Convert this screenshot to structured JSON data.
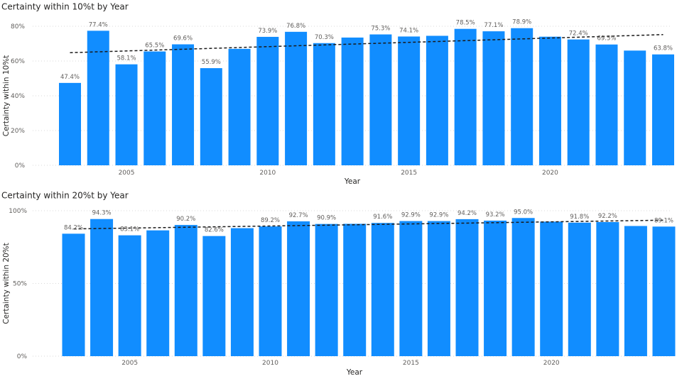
{
  "chart_data": [
    {
      "type": "bar",
      "title": "Certainty within 10%t by Year",
      "xlabel": "Year",
      "ylabel": "Certainty within 10%t",
      "ylim": [
        0,
        85
      ],
      "yticks": [
        0,
        20,
        40,
        60,
        80
      ],
      "ytick_labels": [
        "0%",
        "20%",
        "40%",
        "60%",
        "80%"
      ],
      "xticks": [
        2005,
        2010,
        2015,
        2020
      ],
      "xtick_labels": [
        "2005",
        "2010",
        "2015",
        "2020"
      ],
      "grid": true,
      "bar_color": "#118dff",
      "trendline": true,
      "categories": [
        2003,
        2004,
        2005,
        2006,
        2007,
        2008,
        2009,
        2010,
        2011,
        2012,
        2013,
        2014,
        2015,
        2016,
        2017,
        2018,
        2019,
        2020,
        2021,
        2022,
        2023,
        2024
      ],
      "values": [
        47.4,
        77.4,
        58.1,
        65.5,
        69.6,
        55.9,
        67.0,
        73.9,
        76.8,
        70.3,
        73.5,
        75.3,
        74.1,
        74.5,
        78.5,
        77.1,
        78.9,
        74.0,
        72.4,
        69.5,
        66.0,
        63.8
      ],
      "data_labels": [
        "47.4%",
        "77.4%",
        "58.1%",
        "65.5%",
        "69.6%",
        "55.9%",
        "",
        "73.9%",
        "76.8%",
        "70.3%",
        "",
        "75.3%",
        "74.1%",
        "",
        "78.5%",
        "77.1%",
        "78.9%",
        "",
        "72.4%",
        "69.5%",
        "",
        "63.8%"
      ],
      "trend_start": 64.8,
      "trend_end": 75.2
    },
    {
      "type": "bar",
      "title": "Certainty within 20%t by Year",
      "xlabel": "Year",
      "ylabel": "Certainty within 20%t",
      "ylim": [
        0,
        100
      ],
      "yticks": [
        0,
        50,
        100
      ],
      "ytick_labels": [
        "0%",
        "50%",
        "100%"
      ],
      "xticks": [
        2005,
        2010,
        2015,
        2020
      ],
      "xtick_labels": [
        "2005",
        "2010",
        "2015",
        "2020"
      ],
      "grid": true,
      "bar_color": "#118dff",
      "trendline": true,
      "categories": [
        2003,
        2004,
        2005,
        2006,
        2007,
        2008,
        2009,
        2010,
        2011,
        2012,
        2013,
        2014,
        2015,
        2016,
        2017,
        2018,
        2019,
        2020,
        2021,
        2022,
        2023,
        2024
      ],
      "values": [
        84.2,
        94.3,
        83.1,
        86.5,
        90.2,
        82.6,
        88.0,
        89.2,
        92.7,
        90.9,
        91.0,
        91.6,
        92.9,
        92.9,
        94.2,
        93.2,
        95.0,
        92.5,
        91.8,
        92.2,
        89.5,
        89.1
      ],
      "data_labels": [
        "84.2%",
        "94.3%",
        "83.1%",
        "",
        "90.2%",
        "82.6%",
        "",
        "89.2%",
        "92.7%",
        "90.9%",
        "",
        "91.6%",
        "92.9%",
        "92.9%",
        "94.2%",
        "93.2%",
        "95.0%",
        "",
        "91.8%",
        "92.2%",
        "",
        "89.1%"
      ],
      "trend_start": 87.5,
      "trend_end": 93.5
    }
  ]
}
